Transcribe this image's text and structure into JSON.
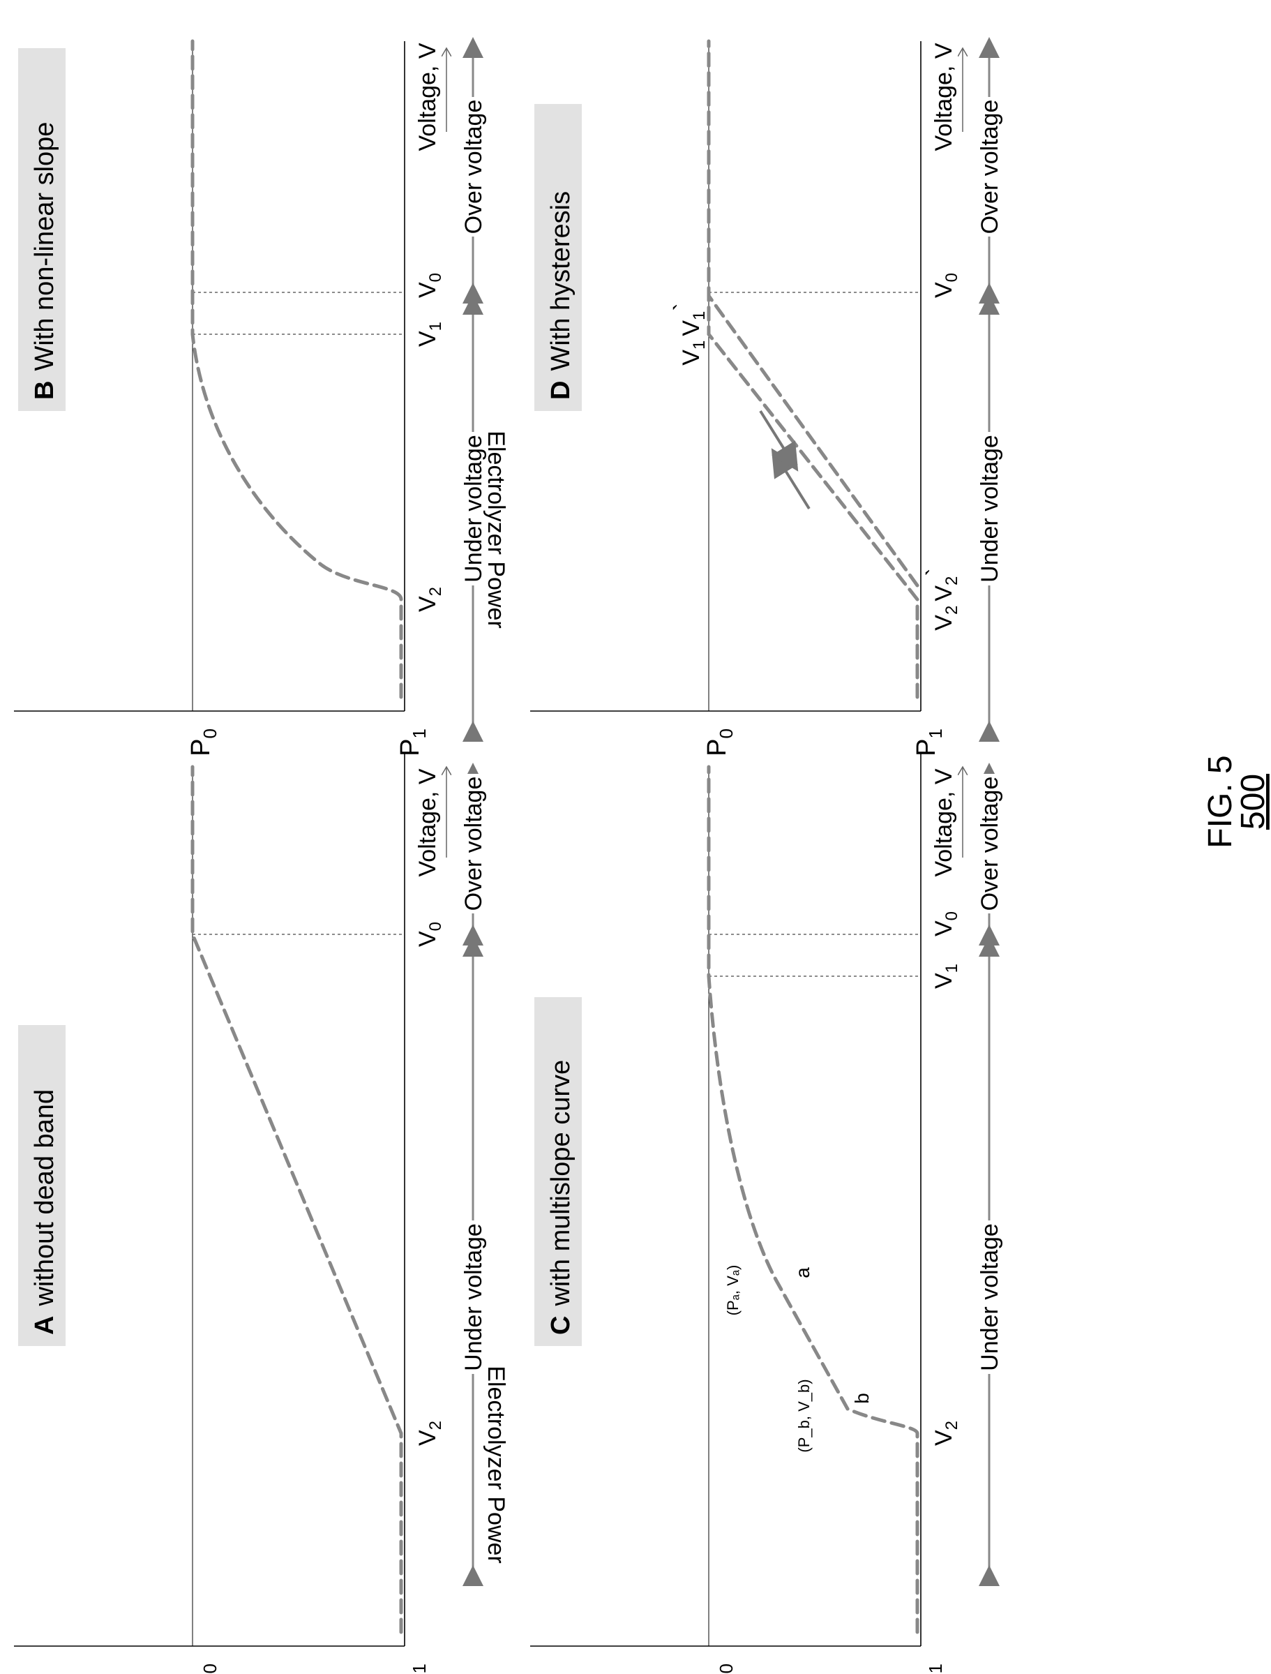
{
  "figure": {
    "label": "FIG. 5",
    "number": "500"
  },
  "common": {
    "y_axis_label": "Electrolyzer Power",
    "x_axis_label": "Voltage, V",
    "under_voltage": "Under voltage",
    "over_voltage": "Over voltage",
    "p0": "P",
    "p1": "P",
    "sub0": "0",
    "sub1": "1"
  },
  "panels": [
    {
      "id": "A",
      "letter": "A",
      "title": "without dead band",
      "ticks": {
        "v2": "V",
        "v2_sub": "2",
        "v0": "V",
        "v0_sub": "0"
      }
    },
    {
      "id": "B",
      "letter": "B",
      "title": "With non-linear slope",
      "ticks": {
        "v2": "V",
        "v2_sub": "2",
        "v1": "V",
        "v1_sub": "1",
        "v0": "V",
        "v0_sub": "0"
      }
    },
    {
      "id": "C",
      "letter": "C",
      "title": "with multislope curve",
      "ticks": {
        "v2": "V",
        "v2_sub": "2",
        "v1": "V",
        "v1_sub": "1",
        "v0": "V",
        "v0_sub": "0"
      },
      "points": {
        "a": "a",
        "b": "b",
        "pa": "(Pₐ, Vₐ)",
        "pb": "(P_b, V_b)"
      }
    },
    {
      "id": "D",
      "letter": "D",
      "title": "With hysteresis",
      "ticks": {
        "v2": "V",
        "v2_sub": "2",
        "v2p": "V",
        "v2p_sub": "2",
        "prime": "`",
        "v1": "V",
        "v1_sub": "1",
        "v1p": "V",
        "v1p_sub": "1",
        "v0": "V",
        "v0_sub": "0"
      }
    }
  ]
}
